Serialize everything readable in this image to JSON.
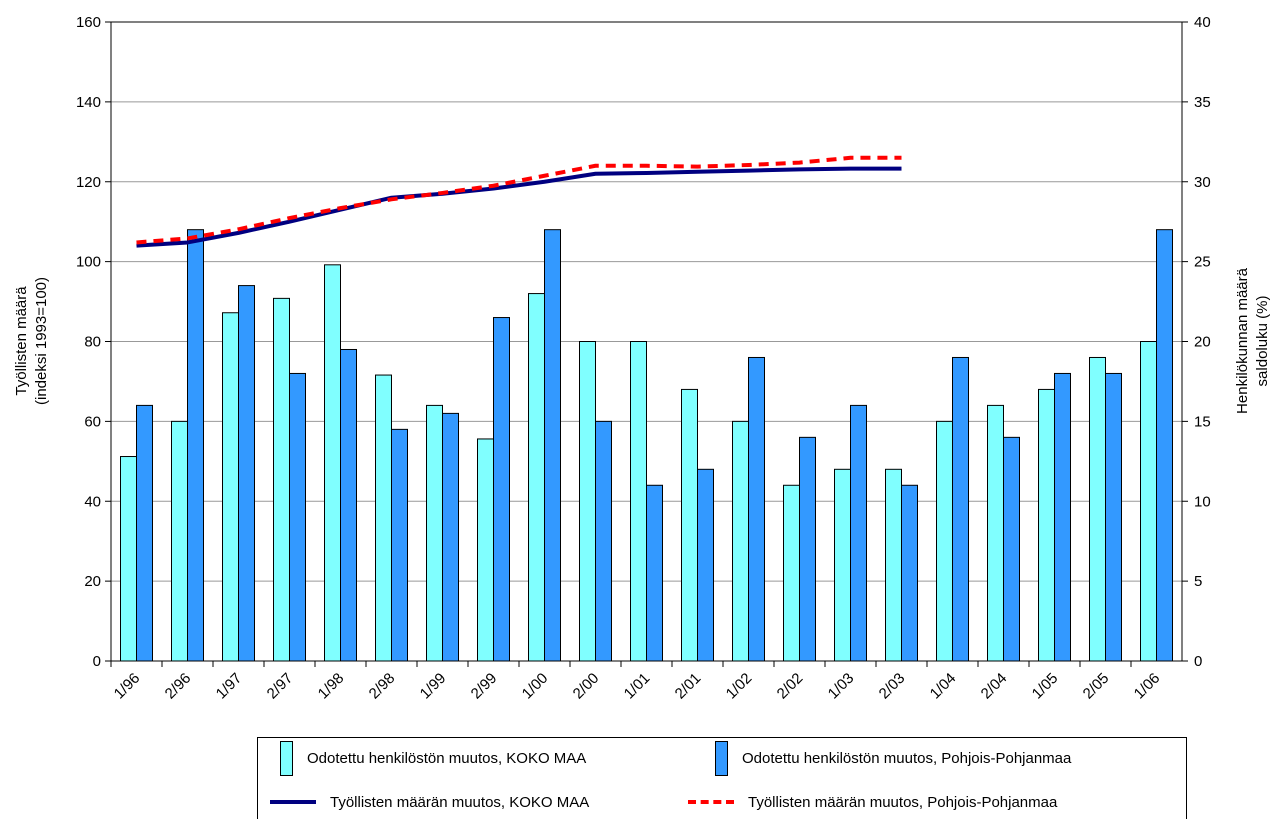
{
  "chart_data": {
    "type": "bar",
    "categories": [
      "1/96",
      "2/96",
      "1/97",
      "2/97",
      "1/98",
      "2/98",
      "1/99",
      "2/99",
      "1/00",
      "2/00",
      "1/01",
      "2/01",
      "1/02",
      "2/02",
      "1/03",
      "2/03",
      "1/04",
      "2/04",
      "1/05",
      "2/05",
      "1/06"
    ],
    "left_axis": {
      "label_line1": "Työllisten määrä",
      "label_line2": "(indeksi 1993=100)",
      "ylim": [
        0,
        160
      ],
      "ticks": [
        "0",
        "20",
        "40",
        "60",
        "80",
        "100",
        "120",
        "140",
        "160"
      ]
    },
    "right_axis": {
      "label_line1": "Henkilökunnan määrä",
      "label_line2": "saldoluku (%)",
      "ylim": [
        0,
        40
      ],
      "ticks": [
        "0",
        "5",
        "10",
        "15",
        "20",
        "25",
        "30",
        "35",
        "40"
      ]
    },
    "grid": true,
    "bar_series": [
      {
        "name": "Odotettu henkilöstön muutos, KOKO MAA",
        "color": "#80FFFF",
        "axis": "right",
        "values": [
          12.8,
          15.0,
          21.8,
          22.7,
          24.8,
          17.9,
          16.0,
          13.9,
          23.0,
          20.0,
          20.0,
          17.0,
          15.0,
          11.0,
          12.0,
          12.0,
          15.0,
          16.0,
          17.0,
          19.0,
          20.0
        ]
      },
      {
        "name": "Odotettu henkilöstön muutos, Pohjois-Pohjanmaa",
        "color": "#3399FF",
        "axis": "right",
        "values": [
          16.0,
          27.0,
          23.5,
          18.0,
          19.5,
          14.5,
          15.5,
          21.5,
          27.0,
          15.0,
          11.0,
          12.0,
          19.0,
          14.0,
          16.0,
          11.0,
          19.0,
          14.0,
          18.0,
          18.0,
          27.0
        ]
      }
    ],
    "line_series": [
      {
        "name": "Työllisten määrän  muutos, KOKO MAA",
        "color": "#000080",
        "style": "solid",
        "axis": "left",
        "values": [
          104.0,
          104.8,
          107.2,
          110.0,
          113.0,
          116.0,
          117.0,
          118.3,
          120.0,
          122.0,
          122.2,
          122.5,
          122.8,
          123.1,
          123.3,
          123.3
        ]
      },
      {
        "name": "Työllisten määrän muutos, Pohjois-Pohjanmaa",
        "color": "#FF0000",
        "style": "dashed",
        "axis": "left",
        "values": [
          104.8,
          105.8,
          108.1,
          110.9,
          113.4,
          115.6,
          117.2,
          119.0,
          121.5,
          124.0,
          124.0,
          123.8,
          124.2,
          124.8,
          126.0,
          126.0
        ]
      }
    ]
  },
  "legend": {
    "bar1_label": "Odotettu henkilöstön muutos, KOKO MAA",
    "bar2_label": "Odotettu henkilöstön muutos, Pohjois-Pohjanmaa",
    "line1_label": "Työllisten määrän  muutos, KOKO MAA",
    "line2_label": "Työllisten määrän muutos, Pohjois-Pohjanmaa"
  }
}
